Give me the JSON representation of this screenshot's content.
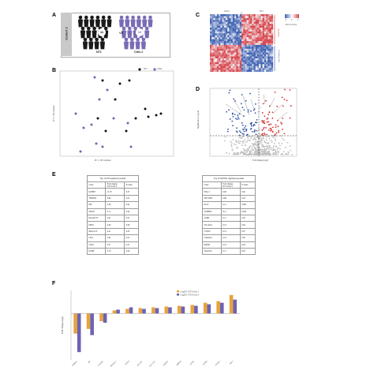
{
  "panels": {
    "a": "A",
    "b": "B",
    "c": "C",
    "d": "D",
    "e": "E",
    "f": "F"
  },
  "panel_a": {
    "cohort_label": "Cohort 2",
    "group1_count": "11",
    "group2_count": "12",
    "vs": "VS",
    "group1_label": "NT1",
    "group2_label": "Ctrls 2",
    "group1_color": "#1a1a1a",
    "group2_color": "#7a6bb5"
  },
  "panel_b": {
    "legend_nt1": "NT1",
    "legend_ctrls": "Ctrls2",
    "xlabel": "PC 1: 16% variance",
    "ylabel": "PC 2: 10% variance"
  },
  "panel_c": {
    "label_ctrls": "Ctrls 2",
    "label_nt1": "NT1",
    "row_label_up": "UP in NT1",
    "row_label_down": "DOWN in NT1",
    "legend_title": "Row Z-Score",
    "legend_ticks": [
      "-2",
      "0",
      "2"
    ]
  },
  "panel_d": {
    "xlabel": "Fold change (log2)",
    "ylabel": "Significance (-Log10)"
  },
  "table_up": {
    "caption": "Top 10 UP regulated proteins",
    "headers": [
      "Label",
      "Fold change NT1/Ctrls 2",
      "P-value"
    ],
    "rows": [
      [
        "IGFBP7",
        "11.79",
        "0.07"
      ],
      [
        "TMSB15",
        "6.66",
        "0.01"
      ],
      [
        "PIP",
        "3.28",
        "0.02"
      ],
      [
        "MYOC",
        "3.11",
        "0.04"
      ],
      [
        "KIAA0773",
        "4.41",
        "0.01"
      ],
      [
        "DPP4",
        "4.09",
        "0.09"
      ],
      [
        "KDGA 55",
        "4.41",
        "0.05"
      ],
      [
        "ITG2",
        "2.92",
        "0.01"
      ],
      [
        "CD44",
        "3.37",
        "0.07"
      ],
      [
        "PCDH",
        "2.79",
        "0.04"
      ]
    ]
  },
  "table_down": {
    "caption": "Top 10 DOWN regulated proteins",
    "headers": [
      "Label",
      "Fold change NT1/Ctrls 2",
      "P-value"
    ],
    "rows": [
      [
        "PSG11",
        "0.08",
        "0.04"
      ],
      [
        "NECTIN3",
        "0.86",
        "0.02"
      ],
      [
        "PLS3",
        "0.11",
        "0.003"
      ],
      [
        "TGFBR2",
        "0.11",
        "0.005"
      ],
      [
        "ASPH",
        "0.11",
        "0.03"
      ],
      [
        "SLC44A1",
        "0.13",
        "0.04"
      ],
      [
        "CYP4V",
        "0.13",
        "0.07"
      ],
      [
        "CORO1A",
        "0.14",
        "0.03"
      ],
      [
        "KDM3",
        "0.14",
        "0.04"
      ],
      [
        "TAGLN2",
        "0.17",
        "0.03"
      ]
    ]
  },
  "colors": {
    "nt1": "#111111",
    "ctrls": "#6a66b5",
    "volcano_up": "#d32f2f",
    "volcano_down": "#2e4fa3",
    "volcano_ns": "#bdbdbd",
    "heat_high": "#d7474e",
    "heat_low": "#3f62b2",
    "bar_orange": "#e8a33c",
    "bar_purple": "#6c63b4"
  },
  "chart_data": {
    "type": "bar",
    "legend": [
      "Log2FC NT1/Ctrls 1",
      "Log2FC NT1/Ctrls 2"
    ],
    "ylabel": "Fold Change (log2)",
    "ylim": [
      -3,
      1.5
    ],
    "categories": [
      "TMSB15",
      "PIP",
      "CYP2R1",
      "SPARCL1",
      "CD163",
      "SLC2A1",
      "COL15A1",
      "LRPAP1",
      "SMPD2",
      "LZTS2",
      "FABP4",
      "ITGBL1",
      "CHL1"
    ],
    "series": [
      {
        "name": "Log2FC NT1/Ctrls 1",
        "values": [
          -1.3,
          -1.0,
          -0.5,
          0.2,
          0.3,
          0.35,
          0.4,
          0.45,
          0.5,
          0.55,
          0.7,
          0.8,
          1.2
        ]
      },
      {
        "name": "Log2FC NT1/Ctrls 2",
        "values": [
          -2.5,
          -1.4,
          -0.6,
          0.25,
          0.4,
          0.3,
          0.35,
          0.4,
          0.45,
          0.5,
          0.6,
          0.7,
          0.9
        ]
      }
    ]
  }
}
